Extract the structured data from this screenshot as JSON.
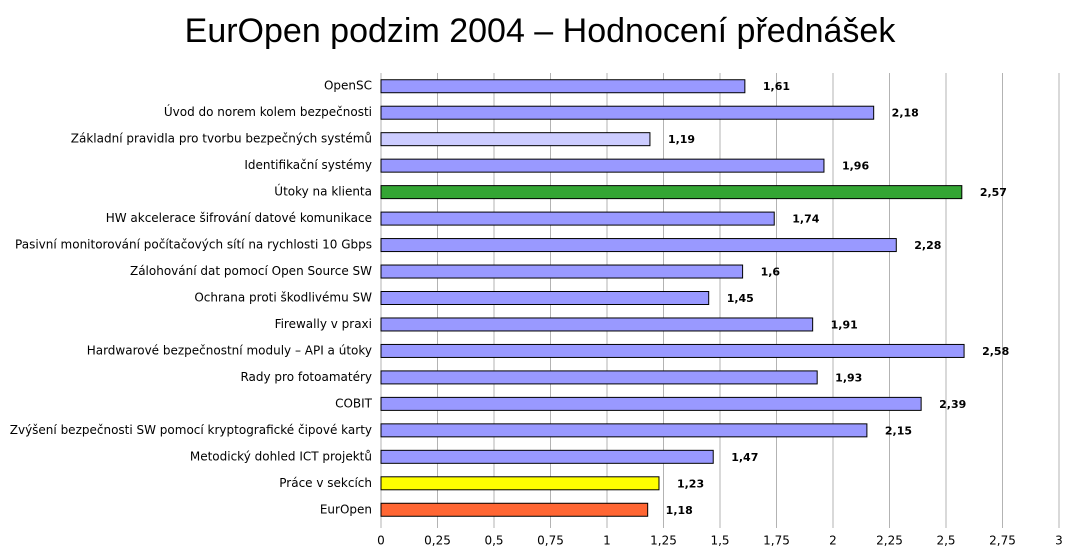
{
  "chart_data": {
    "type": "barh",
    "title": "EurOpen podzim 2004 – Hodnocení přednášek",
    "categories": [
      "OpenSC",
      "Úvod do norem kolem bezpečnosti",
      "Základní pravidla pro tvorbu bezpečných systémů",
      "Identifikační systémy",
      "Útoky na klienta",
      "HW akcelerace šifrování datové komunikace",
      "Pasivní monitorování počítačových sítí na rychlosti 10 Gbps",
      "Zálohování dat pomocí Open Source SW",
      "Ochrana proti škodlivému SW",
      "Firewally v praxi",
      "Hardwarové bezpečnostní moduly – API a útoky",
      "Rady pro fotoamatéry",
      "COBIT",
      "Zvýšení bezpečnosti SW pomocí kryptografické čipové karty",
      "Metodický dohled ICT projektů",
      "Práce v sekcích",
      "EurOpen"
    ],
    "values": [
      1.61,
      2.18,
      1.19,
      1.96,
      2.57,
      1.74,
      2.28,
      1.6,
      1.45,
      1.91,
      2.58,
      1.93,
      2.39,
      2.15,
      1.47,
      1.23,
      1.18
    ],
    "value_labels": [
      "1,61",
      "2,18",
      "1,19",
      "1,96",
      "2,57",
      "1,74",
      "2,28",
      "1,6",
      "1,45",
      "1,91",
      "2,58",
      "1,93",
      "2,39",
      "2,15",
      "1,47",
      "1,23",
      "1,18"
    ],
    "colors": [
      "#9999ff",
      "#9999ff",
      "#ccccff",
      "#9999ff",
      "#33a533",
      "#9999ff",
      "#9999ff",
      "#9999ff",
      "#9999ff",
      "#9999ff",
      "#9999ff",
      "#9999ff",
      "#9999ff",
      "#9999ff",
      "#9999ff",
      "#ffff00",
      "#ff6633"
    ],
    "xlim": [
      0,
      3
    ],
    "xticks": [
      0,
      {
        "value": 0.25,
        "label": "0,25"
      },
      {
        "value": 0.5,
        "label": "0,5"
      },
      {
        "value": 0.75,
        "label": "0,75"
      },
      1,
      {
        "value": 1.25,
        "label": "1,25"
      },
      {
        "value": 1.5,
        "label": "1,5"
      },
      {
        "value": 1.75,
        "label": "1,75"
      },
      2,
      {
        "value": 2.25,
        "label": "2,25"
      },
      {
        "value": 2.5,
        "label": "2,5"
      },
      {
        "value": 2.75,
        "label": "2,75"
      },
      3
    ],
    "grid": true
  }
}
